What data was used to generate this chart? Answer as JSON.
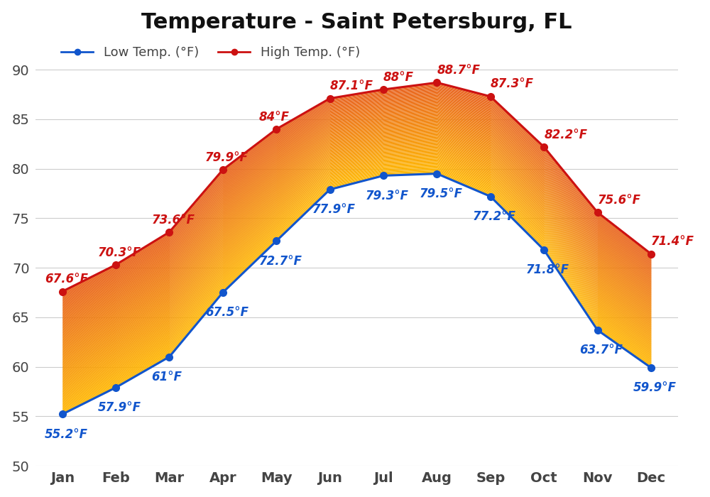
{
  "title": "Temperature - Saint Petersburg, FL",
  "months": [
    "Jan",
    "Feb",
    "Mar",
    "Apr",
    "May",
    "Jun",
    "Jul",
    "Aug",
    "Sep",
    "Oct",
    "Nov",
    "Dec"
  ],
  "low_temps": [
    55.2,
    57.9,
    61.0,
    67.5,
    72.7,
    77.9,
    79.3,
    79.5,
    77.2,
    71.8,
    63.7,
    59.9
  ],
  "high_temps": [
    67.6,
    70.3,
    73.6,
    79.9,
    84.0,
    87.1,
    88.0,
    88.7,
    87.3,
    82.2,
    75.6,
    71.4
  ],
  "low_labels": [
    "55.2°F",
    "57.9°F",
    "61°F",
    "67.5°F",
    "72.7°F",
    "77.9°F",
    "79.3°F",
    "79.5°F",
    "77.2°F",
    "71.8°F",
    "63.7°F",
    "59.9°F"
  ],
  "high_labels": [
    "67.6°F",
    "70.3°F",
    "73.6°F",
    "79.9°F",
    "84°F",
    "87.1°F",
    "88°F",
    "88.7°F",
    "87.3°F",
    "82.2°F",
    "75.6°F",
    "71.4°F"
  ],
  "low_color": "#1155cc",
  "high_color": "#cc1111",
  "fill_orange": "#e8601a",
  "fill_yellow": "#ffb800",
  "line_width": 2.2,
  "marker_size": 7,
  "ylim": [
    50,
    93
  ],
  "yticks": [
    50,
    55,
    60,
    65,
    70,
    75,
    80,
    85,
    90
  ],
  "background_color": "#f0f0f0",
  "plot_bg": "#f8f8f8",
  "title_fontsize": 22,
  "legend_fontsize": 13,
  "tick_fontsize": 14,
  "label_fontsize": 12,
  "grid_color": "#cccccc"
}
